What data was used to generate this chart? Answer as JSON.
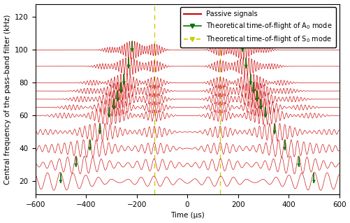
{
  "xlabel": "Time (μs)",
  "ylabel": "Central frequency of the pass-band filter (kHz)",
  "xlim": [
    -600,
    600
  ],
  "ylim": [
    12,
    128
  ],
  "yticks": [
    20,
    40,
    60,
    80,
    100,
    120
  ],
  "xticks": [
    -600,
    -400,
    -200,
    0,
    200,
    400,
    600
  ],
  "signal_color": "#cc0000",
  "A0_color": "#007700",
  "S0_color": "#cccc00",
  "frequencies": [
    20,
    30,
    40,
    50,
    60,
    65,
    70,
    75,
    80,
    90,
    100
  ],
  "A0_tof": [
    500,
    440,
    385,
    345,
    308,
    290,
    275,
    262,
    250,
    232,
    218
  ],
  "S0_tof": [
    132,
    131,
    130,
    130,
    130,
    130,
    130,
    130,
    130,
    130,
    130
  ],
  "env_A0": [
    130,
    105,
    82,
    66,
    54,
    50,
    47,
    44,
    41,
    36,
    32
  ],
  "env_S0": [
    85,
    68,
    55,
    45,
    38,
    36,
    34,
    32,
    30,
    27,
    25
  ],
  "row_amp": 5.5,
  "figsize": [
    5.01,
    3.19
  ],
  "dpi": 100,
  "legend_fontsize": 7,
  "axis_label_fontsize": 7.5,
  "tick_fontsize": 7.5
}
